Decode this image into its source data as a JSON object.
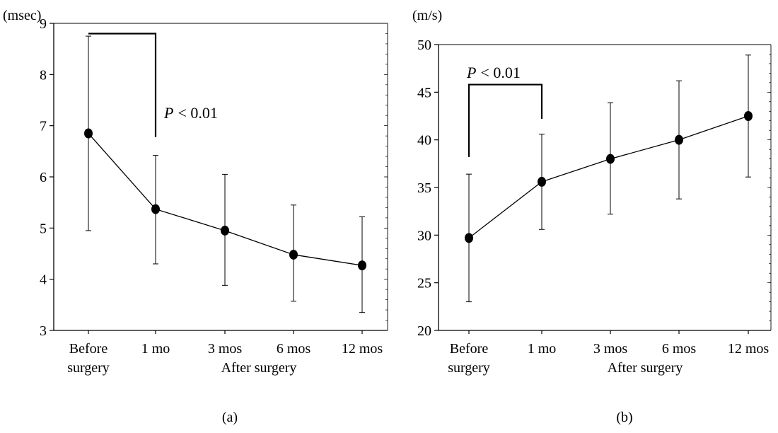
{
  "chart_data": [
    {
      "type": "line",
      "panel_label": "(a)",
      "unit_label": "(msec)",
      "categories": [
        [
          "Before",
          "surgery"
        ],
        [
          "1 mo"
        ],
        [
          "3 mos"
        ],
        [
          "6 mos"
        ],
        [
          "12 mos"
        ]
      ],
      "group_label": "After surgery",
      "ylim": [
        3,
        9
      ],
      "yticks": [
        3,
        4,
        5,
        6,
        7,
        8,
        9
      ],
      "series": [
        {
          "values": [
            6.85,
            5.37,
            4.95,
            4.48,
            4.27
          ],
          "error_low": [
            4.95,
            4.3,
            3.88,
            3.57,
            3.35
          ],
          "error_high": [
            8.75,
            6.42,
            6.05,
            5.45,
            5.22
          ]
        }
      ],
      "annotation": {
        "p": "P",
        "op": "< 0.01",
        "from_category": 0,
        "to_category": 1,
        "bracket_y": 8.8,
        "left_end_y": 8.8,
        "right_end_y": 6.78
      }
    },
    {
      "type": "line",
      "panel_label": "(b)",
      "unit_label": "(m/s)",
      "categories": [
        [
          "Before",
          "surgery"
        ],
        [
          "1 mo"
        ],
        [
          "3 mos"
        ],
        [
          "6 mos"
        ],
        [
          "12 mos"
        ]
      ],
      "group_label": "After surgery",
      "ylim": [
        20,
        50
      ],
      "yticks": [
        20,
        25,
        30,
        35,
        40,
        45,
        50
      ],
      "series": [
        {
          "values": [
            29.7,
            35.6,
            38.0,
            40.0,
            42.5
          ],
          "error_low": [
            23.0,
            30.6,
            32.2,
            33.8,
            36.1
          ],
          "error_high": [
            36.4,
            40.6,
            43.9,
            46.2,
            48.9
          ]
        }
      ],
      "annotation": {
        "p": "P",
        "op": "< 0.01",
        "from_category": 0,
        "to_category": 1,
        "bracket_y": 45.8,
        "left_end_y": 38.2,
        "right_end_y": 42.2
      }
    }
  ]
}
